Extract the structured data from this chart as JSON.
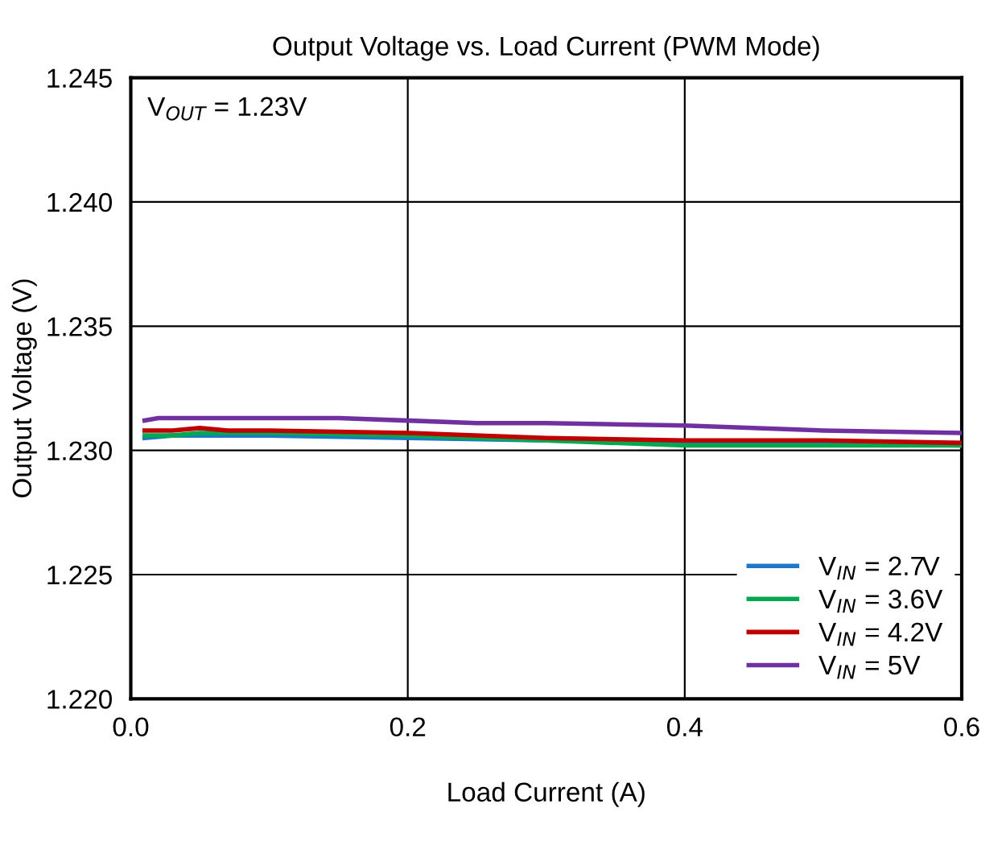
{
  "chart_data": {
    "type": "line",
    "title": "Output Voltage vs. Load Current (PWM Mode)",
    "xlabel": "Load Current (A)",
    "ylabel": "Output Voltage (V)",
    "annotations": [
      "V$_{OUT}$ = 1.23V"
    ],
    "series": [
      {
        "name": "V$_{IN}$ = 2.7V",
        "color": "#1f77c8",
        "x": [
          0.01,
          0.03,
          0.05,
          0.1,
          0.2,
          0.3,
          0.4,
          0.5,
          0.6
        ],
        "values": [
          1.2305,
          1.2306,
          1.2306,
          1.2306,
          1.2305,
          1.2304,
          1.2303,
          1.2303,
          1.2302
        ]
      },
      {
        "name": "V$_{IN}$ = 3.6V",
        "color": "#00a850",
        "x": [
          0.01,
          0.03,
          0.05,
          0.1,
          0.2,
          0.3,
          0.4,
          0.5,
          0.6
        ],
        "values": [
          1.2306,
          1.2306,
          1.2307,
          1.2307,
          1.2306,
          1.2304,
          1.2302,
          1.2302,
          1.2302
        ]
      },
      {
        "name": "V$_{IN}$ = 4.2V",
        "color": "#c00000",
        "x": [
          0.01,
          0.03,
          0.05,
          0.07,
          0.1,
          0.2,
          0.3,
          0.4,
          0.5,
          0.6
        ],
        "values": [
          1.2308,
          1.2308,
          1.2309,
          1.2308,
          1.2308,
          1.2307,
          1.2305,
          1.2304,
          1.2304,
          1.2303
        ]
      },
      {
        "name": "V$_{IN}$ = 5V",
        "color": "#7030a0",
        "x": [
          0.01,
          0.02,
          0.05,
          0.1,
          0.15,
          0.2,
          0.25,
          0.3,
          0.4,
          0.5,
          0.6
        ],
        "values": [
          1.2312,
          1.2313,
          1.2313,
          1.2313,
          1.2313,
          1.2312,
          1.2311,
          1.2311,
          1.231,
          1.2308,
          1.2307
        ]
      }
    ],
    "xlim": [
      0,
      0.6
    ],
    "xticks": [
      {
        "value": 0,
        "label": "0.0"
      },
      0.2,
      0.4,
      0.6
    ],
    "ylim": [
      1.22,
      1.245
    ],
    "yticks": [
      {
        "value": 1.22,
        "label": "1.220"
      },
      1.225,
      {
        "value": 1.23,
        "label": "1.230"
      },
      1.235,
      {
        "value": 1.24,
        "label": "1.240"
      },
      1.245
    ],
    "grid": true,
    "legend": "bottom right",
    "line_style": "solid",
    "marker": "none"
  }
}
